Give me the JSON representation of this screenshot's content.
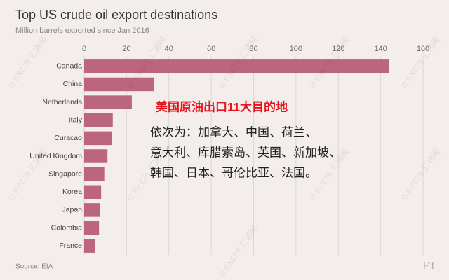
{
  "chart_data": {
    "type": "barh",
    "title": "Top US crude oil export destinations",
    "subtitle": "Million barrels exported since Jan 2016",
    "categories": [
      "Canada",
      "China",
      "Netherlands",
      "Italy",
      "Curacao",
      "United Kingdom",
      "Singapore",
      "Korea",
      "Japan",
      "Colombia",
      "France"
    ],
    "values": [
      144,
      33,
      22.5,
      13.5,
      13,
      11,
      9.5,
      8,
      7.5,
      7,
      5
    ],
    "color": "#bb6581",
    "xlim": [
      0,
      160
    ],
    "xticks": [
      0,
      20,
      40,
      60,
      80,
      100,
      120,
      140,
      160
    ],
    "grid": true,
    "source": "Source: EIA",
    "logo": "FT",
    "annotation_title": "美国原油出口11大目的地",
    "annotation_lines": [
      "依次为：加拿大、中国、荷兰、",
      "意大利、库腊索岛、英国、新加坡、",
      "韩国、日本、哥伦比亚、法国。"
    ],
    "watermark": "© FX678 汇通网"
  }
}
